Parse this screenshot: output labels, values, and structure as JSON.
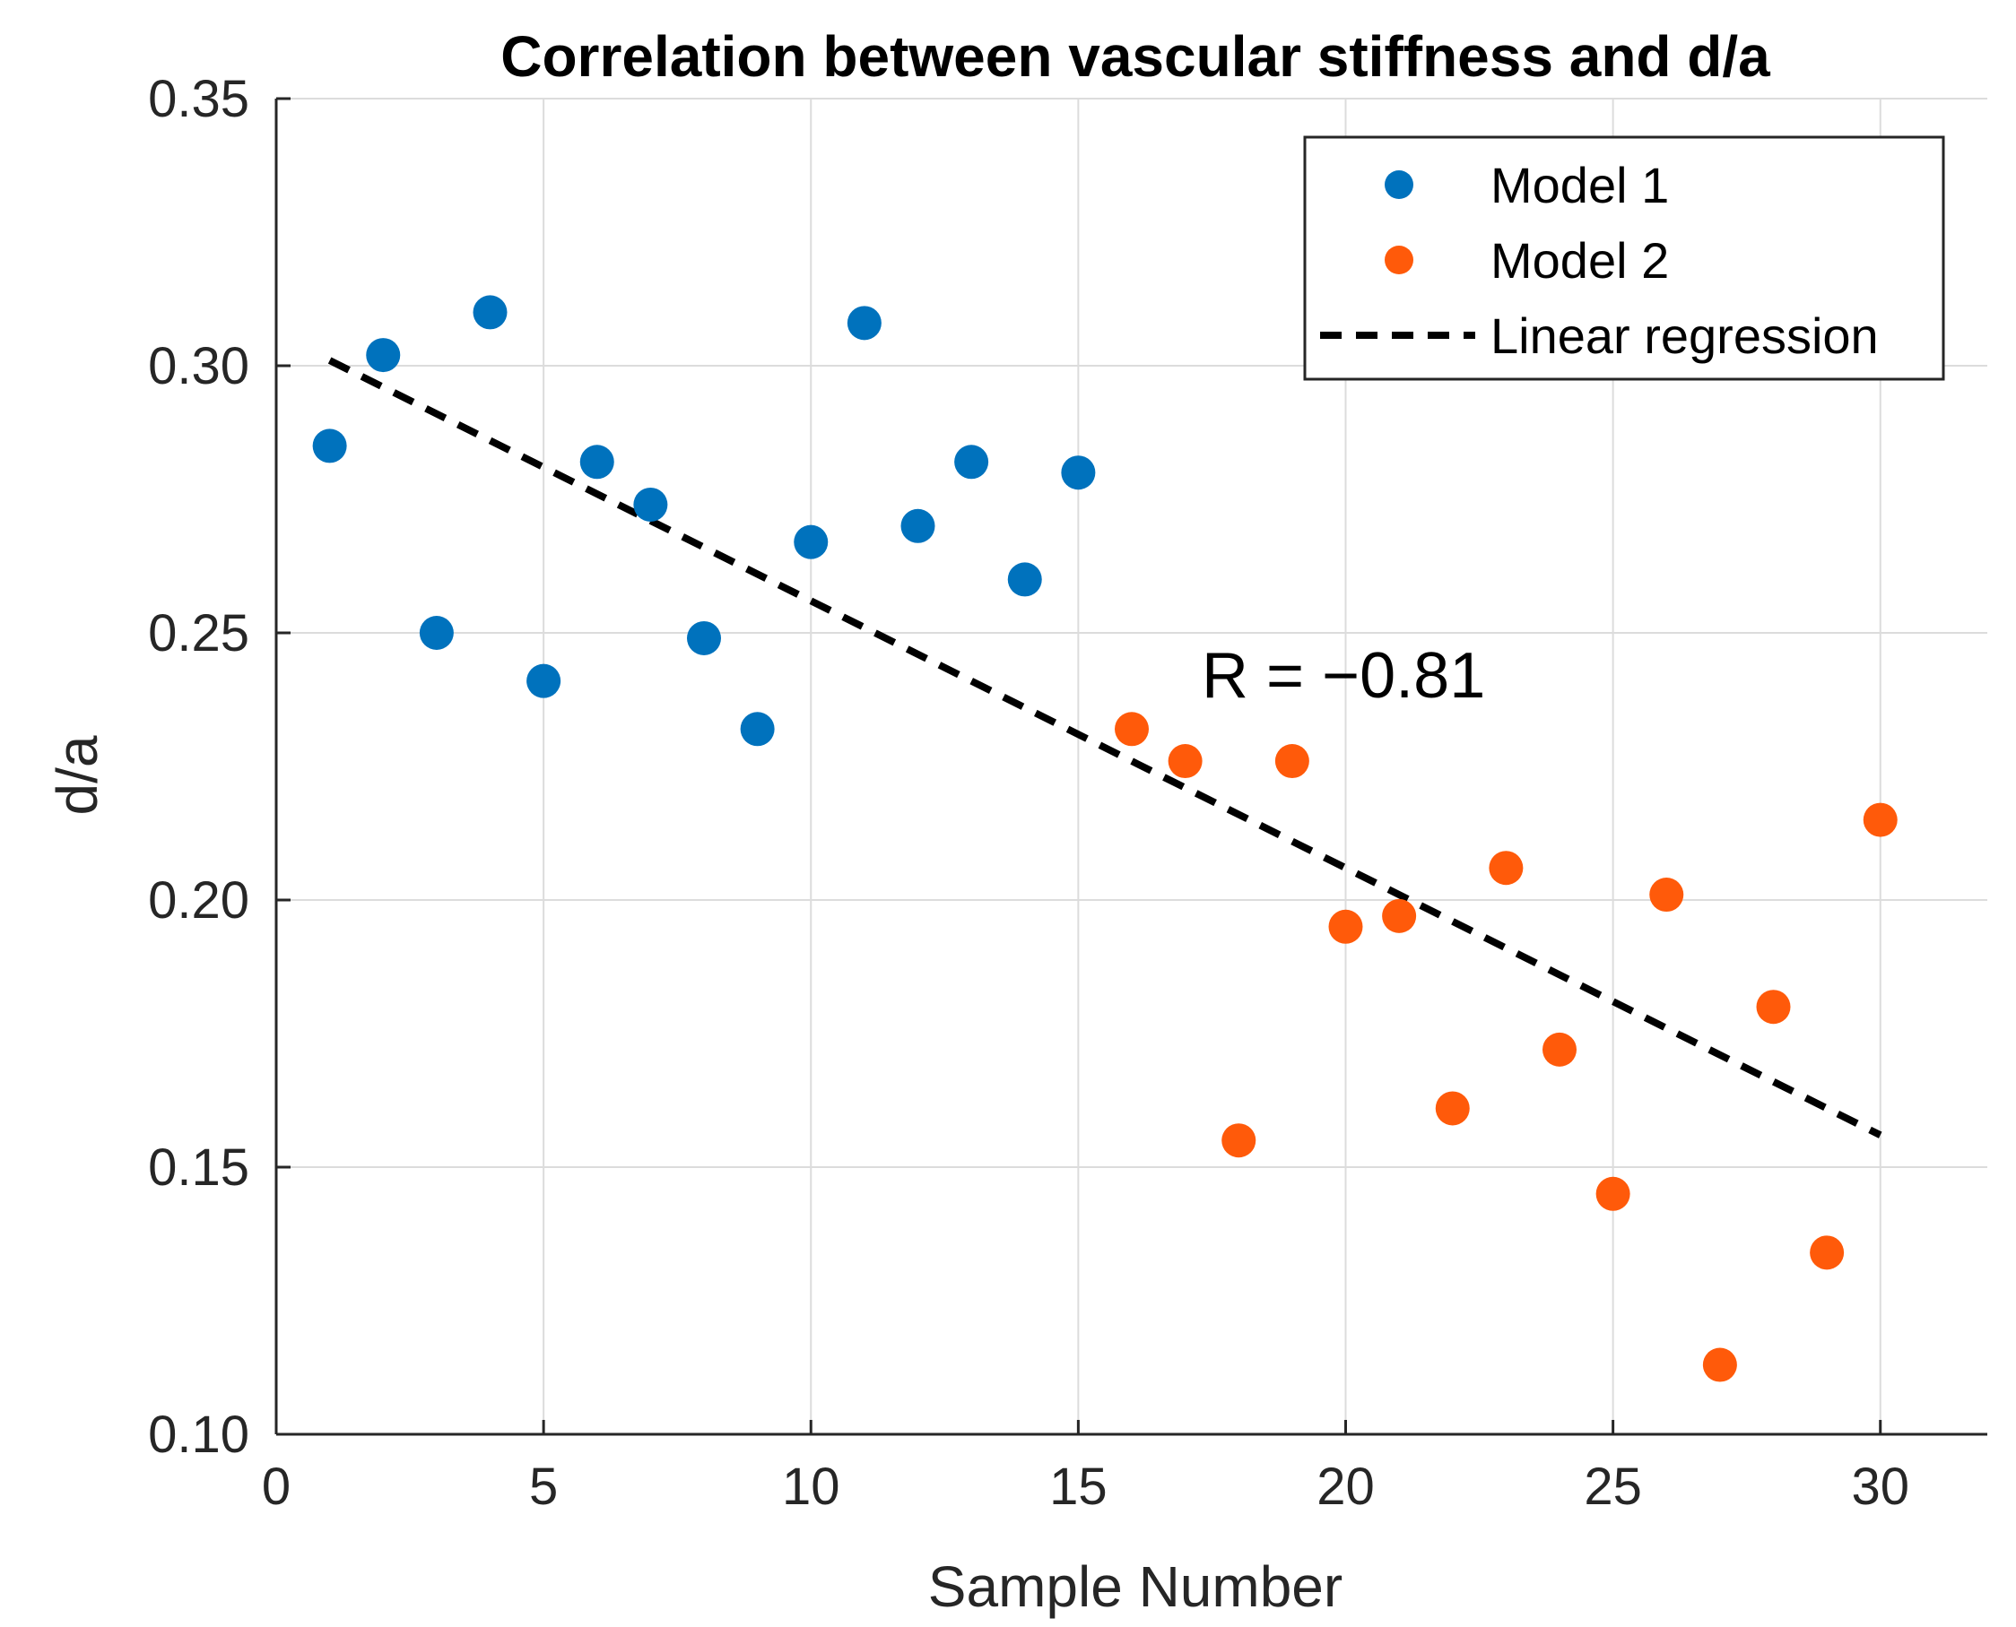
{
  "chart_data": {
    "type": "scatter",
    "title": "Correlation between vascular stiffness and d/a",
    "xlabel": "Sample Number",
    "ylabel": "d/a",
    "xlim": [
      0,
      32
    ],
    "ylim": [
      0.1,
      0.35
    ],
    "xticks": [
      "0",
      "5",
      "10",
      "15",
      "20",
      "25",
      "30"
    ],
    "yticks": [
      "0.10",
      "0.15",
      "0.20",
      "0.25",
      "0.30",
      "0.35"
    ],
    "grid": true,
    "legend_position": "top-right",
    "annotation": "R = −0.81",
    "series": [
      {
        "name": "Model 1",
        "color": "#0072BD",
        "x": [
          1,
          2,
          3,
          4,
          5,
          6,
          7,
          8,
          9,
          10,
          11,
          12,
          13,
          14,
          15
        ],
        "y": [
          0.285,
          0.302,
          0.25,
          0.31,
          0.241,
          0.282,
          0.274,
          0.249,
          0.232,
          0.267,
          0.308,
          0.27,
          0.282,
          0.26,
          0.28
        ]
      },
      {
        "name": "Model 2",
        "color": "#FF5A0A",
        "x": [
          16,
          17,
          18,
          19,
          20,
          21,
          22,
          23,
          24,
          25,
          26,
          27,
          28,
          29,
          30
        ],
        "y": [
          0.232,
          0.226,
          0.155,
          0.226,
          0.195,
          0.197,
          0.161,
          0.206,
          0.172,
          0.145,
          0.201,
          0.113,
          0.18,
          0.134,
          0.215
        ]
      }
    ],
    "regression": {
      "name": "Linear regression",
      "color": "#000000",
      "x": [
        1,
        30
      ],
      "y": [
        0.301,
        0.156
      ]
    }
  }
}
